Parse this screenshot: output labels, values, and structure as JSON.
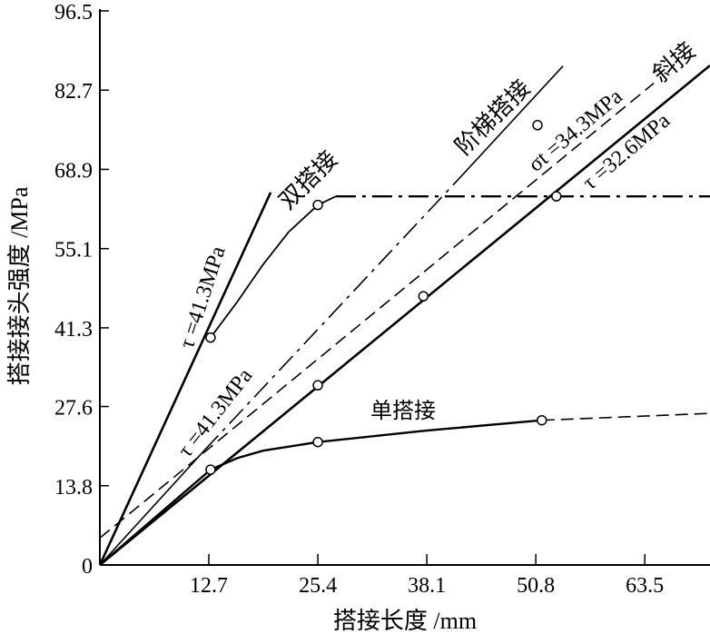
{
  "chart_data": {
    "type": "line",
    "title": "",
    "xlabel": "搭接长度 /mm",
    "ylabel": "搭接接头强度 /MPa",
    "xlim": [
      0,
      71.1
    ],
    "ylim": [
      0,
      96.5
    ],
    "xticks": [
      12.7,
      25.4,
      38.1,
      50.8,
      63.5
    ],
    "xtick_labels": [
      "12.7",
      "25.4",
      "38.1",
      "50.8",
      "63.5"
    ],
    "yticks": [
      0,
      13.8,
      27.6,
      41.3,
      55.1,
      68.9,
      82.7,
      96.5
    ],
    "ytick_labels": [
      "0",
      "13.8",
      "27.6",
      "41.3",
      "55.1",
      "68.9",
      "82.7",
      "96.5"
    ],
    "grid": false,
    "series": [
      {
        "name": "τ=41.3MPa (双搭接理论)",
        "segments": [
          {
            "style": "solid",
            "w": 2.6,
            "points": [
              [
                0,
                0
              ],
              [
                19.9,
                64.9
              ]
            ]
          }
        ],
        "markers": []
      },
      {
        "name": "双搭接",
        "segments": [
          {
            "style": "solid",
            "w": 1.8,
            "points": [
              [
                12.9,
                39.6
              ],
              [
                16,
                45.8
              ],
              [
                19,
                52.3
              ],
              [
                22,
                58
              ],
              [
                25.4,
                62.7
              ],
              [
                27.5,
                64.2
              ]
            ]
          },
          {
            "style": "dashdot",
            "w": 2.4,
            "points": [
              [
                27.5,
                64.2
              ],
              [
                71.1,
                64.2
              ]
            ]
          }
        ],
        "markers": [
          [
            12.9,
            39.6
          ],
          [
            25.4,
            62.7
          ],
          [
            53.2,
            64.2
          ]
        ]
      },
      {
        "name": "阶梯搭接",
        "segments": [
          {
            "style": "solid",
            "w": 1.6,
            "points": [
              [
                0,
                0
              ],
              [
                12.2,
                20
              ]
            ]
          },
          {
            "style": "dashdot",
            "w": 1.6,
            "points": [
              [
                12.2,
                20
              ],
              [
                41.8,
                67.2
              ]
            ]
          },
          {
            "style": "solid",
            "w": 1.6,
            "points": [
              [
                41.8,
                67.2
              ],
              [
                53.97,
                86.9
              ]
            ]
          }
        ],
        "markers": []
      },
      {
        "name": "斜接",
        "segments": [
          {
            "style": "solid",
            "w": 2.6,
            "points": [
              [
                0,
                0
              ],
              [
                71.1,
                87
              ]
            ]
          }
        ],
        "markers": [
          [
            25.4,
            31.3
          ],
          [
            37.7,
            46.8
          ]
        ]
      },
      {
        "name": "σt=34.3MPa",
        "segments": [
          {
            "style": "dashed",
            "w": 1.6,
            "points": [
              [
                0,
                4.7
              ],
              [
                64.55,
                83.9
              ]
            ]
          }
        ],
        "markers": []
      },
      {
        "name": "单搭接",
        "segments": [
          {
            "style": "solid",
            "w": 2.4,
            "points": [
              [
                0,
                0
              ],
              [
                12.9,
                16.6
              ],
              [
                16,
                18.6
              ],
              [
                19,
                19.9
              ],
              [
                25.4,
                21.4
              ],
              [
                38,
                23.4
              ],
              [
                51.5,
                25.2
              ]
            ]
          },
          {
            "style": "dashed",
            "w": 1.6,
            "points": [
              [
                51.5,
                25.2
              ],
              [
                71.1,
                26.4
              ]
            ]
          }
        ],
        "markers": [
          [
            12.9,
            16.6
          ],
          [
            25.4,
            21.4
          ],
          [
            51.5,
            25.2
          ]
        ]
      },
      {
        "name": "isolated point",
        "segments": [],
        "markers": [
          [
            51,
            76.6
          ]
        ]
      }
    ],
    "annotations": [
      {
        "id": "tau-double",
        "text": "τ =41.3MPa"
      },
      {
        "id": "double-lap",
        "text": "双搭接"
      },
      {
        "id": "step-lap",
        "text": "阶梯搭接"
      },
      {
        "id": "sigma",
        "text": "σt =34.3MPa"
      },
      {
        "id": "scarf",
        "text": "斜接"
      },
      {
        "id": "tau-scarf",
        "text": "τ =32.6MPa"
      },
      {
        "id": "tau-step",
        "text": "τ =41.3MPa"
      },
      {
        "id": "single-lap",
        "text": "单搭接"
      }
    ]
  }
}
